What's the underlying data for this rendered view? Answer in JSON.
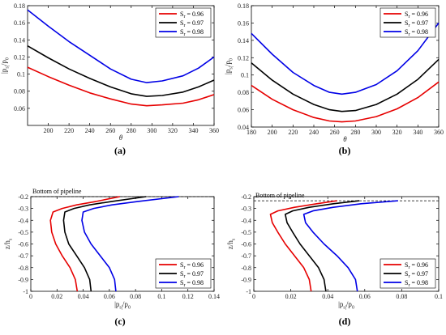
{
  "panel_labels": [
    "(a)",
    "(b)",
    "(c)",
    "(d)"
  ],
  "chart_data": [
    {
      "id": "a",
      "type": "line",
      "xlabel": "θ",
      "ylabel": "|p_s|/p_0",
      "xlim": [
        180,
        360
      ],
      "ylim": [
        0.04,
        0.18
      ],
      "xticks": [
        "200",
        "220",
        "240",
        "260",
        "280",
        "300",
        "320",
        "340",
        "360"
      ],
      "yticks": [
        "0.06",
        "0.08",
        "0.1",
        "0.12",
        "0.14",
        "0.16",
        "0.18"
      ],
      "legend_position": "top-right",
      "series": [
        {
          "name": "S_r = 0.96",
          "color": "#e60000",
          "x": [
            180,
            200,
            220,
            240,
            260,
            280,
            295,
            310,
            330,
            345,
            360
          ],
          "y": [
            0.108,
            0.097,
            0.087,
            0.078,
            0.071,
            0.065,
            0.063,
            0.064,
            0.066,
            0.07,
            0.076
          ]
        },
        {
          "name": "S_r = 0.97",
          "color": "#000000",
          "x": [
            180,
            200,
            220,
            240,
            260,
            280,
            295,
            310,
            330,
            345,
            360
          ],
          "y": [
            0.133,
            0.119,
            0.106,
            0.095,
            0.085,
            0.077,
            0.074,
            0.075,
            0.079,
            0.085,
            0.093
          ]
        },
        {
          "name": "S_r = 0.98",
          "color": "#0000e6",
          "x": [
            180,
            200,
            220,
            240,
            260,
            280,
            295,
            310,
            330,
            345,
            360
          ],
          "y": [
            0.175,
            0.156,
            0.138,
            0.122,
            0.106,
            0.094,
            0.09,
            0.092,
            0.098,
            0.107,
            0.12
          ]
        }
      ]
    },
    {
      "id": "b",
      "type": "line",
      "xlabel": "θ",
      "ylabel": "|p_s|/p_0",
      "xlim": [
        180,
        360
      ],
      "ylim": [
        0.04,
        0.18
      ],
      "xticks": [
        "180",
        "200",
        "220",
        "240",
        "260",
        "280",
        "300",
        "320",
        "340",
        "360"
      ],
      "yticks": [
        "0.04",
        "0.06",
        "0.08",
        "0.1",
        "0.12",
        "0.14",
        "0.16",
        "0.18"
      ],
      "legend_position": "top-right",
      "series": [
        {
          "name": "S_r = 0.96",
          "color": "#e60000",
          "x": [
            180,
            200,
            220,
            240,
            255,
            267,
            280,
            300,
            320,
            340,
            360
          ],
          "y": [
            0.088,
            0.072,
            0.06,
            0.051,
            0.047,
            0.046,
            0.047,
            0.052,
            0.061,
            0.074,
            0.092
          ]
        },
        {
          "name": "S_r = 0.97",
          "color": "#000000",
          "x": [
            180,
            200,
            220,
            240,
            255,
            267,
            280,
            300,
            320,
            340,
            360
          ],
          "y": [
            0.114,
            0.094,
            0.078,
            0.066,
            0.06,
            0.058,
            0.059,
            0.066,
            0.078,
            0.095,
            0.118
          ]
        },
        {
          "name": "S_r = 0.98",
          "color": "#0000e6",
          "x": [
            180,
            200,
            220,
            240,
            255,
            267,
            280,
            300,
            320,
            340,
            360
          ],
          "y": [
            0.148,
            0.124,
            0.103,
            0.088,
            0.08,
            0.078,
            0.08,
            0.089,
            0.105,
            0.128,
            0.16
          ]
        }
      ]
    },
    {
      "id": "c",
      "type": "line",
      "xlabel": "|p_s|/p_0",
      "ylabel": "z/h_s",
      "xlim": [
        0,
        0.14
      ],
      "ylim": [
        -1,
        -0.2
      ],
      "xticks": [
        "0",
        "0.02",
        "0.04",
        "0.06",
        "0.08",
        "0.1",
        "0.12",
        "0.14"
      ],
      "yticks": [
        "-1",
        "-0.9",
        "-0.8",
        "-0.7",
        "-0.6",
        "-0.5",
        "-0.4",
        "-0.3",
        "-0.2"
      ],
      "annotation": "Bottom of pipeline",
      "reference_line_y": -0.2,
      "legend_position": "bottom-right",
      "series": [
        {
          "name": "S_r = 0.96",
          "color": "#e60000",
          "x": [
            0.0355,
            0.034,
            0.03,
            0.024,
            0.019,
            0.016,
            0.015,
            0.017,
            0.024,
            0.035,
            0.05,
            0.068
          ],
          "y": [
            -1.0,
            -0.9,
            -0.8,
            -0.7,
            -0.6,
            -0.5,
            -0.4,
            -0.33,
            -0.3,
            -0.27,
            -0.24,
            -0.2
          ]
        },
        {
          "name": "S_r = 0.97",
          "color": "#000000",
          "x": [
            0.046,
            0.045,
            0.041,
            0.035,
            0.029,
            0.026,
            0.025,
            0.026,
            0.033,
            0.045,
            0.062,
            0.088
          ],
          "y": [
            -1.0,
            -0.9,
            -0.8,
            -0.7,
            -0.6,
            -0.5,
            -0.4,
            -0.33,
            -0.3,
            -0.27,
            -0.24,
            -0.2
          ]
        },
        {
          "name": "S_r = 0.98",
          "color": "#0000e6",
          "x": [
            0.065,
            0.064,
            0.06,
            0.053,
            0.046,
            0.041,
            0.039,
            0.04,
            0.048,
            0.062,
            0.082,
            0.113
          ],
          "y": [
            -1.0,
            -0.9,
            -0.8,
            -0.7,
            -0.6,
            -0.5,
            -0.4,
            -0.33,
            -0.3,
            -0.27,
            -0.24,
            -0.2
          ]
        }
      ]
    },
    {
      "id": "d",
      "type": "line",
      "xlabel": "|p_s|/p_0",
      "ylabel": "z/h_s",
      "xlim": [
        0,
        0.1
      ],
      "ylim": [
        -1,
        -0.2
      ],
      "xticks": [
        "0",
        "0.02",
        "0.04",
        "0.06",
        "0.08",
        "0.1"
      ],
      "yticks": [
        "-1",
        "-0.9",
        "-0.8",
        "-0.7",
        "-0.6",
        "-0.5",
        "-0.4",
        "-0.3",
        "-0.2"
      ],
      "annotation": "Bottom of pipeline",
      "reference_line_y": -0.235,
      "legend_position": "bottom-right",
      "series": [
        {
          "name": "S_r = 0.96",
          "color": "#e60000",
          "x": [
            0.031,
            0.03,
            0.027,
            0.022,
            0.017,
            0.013,
            0.01,
            0.009,
            0.013,
            0.022,
            0.034,
            0.045
          ],
          "y": [
            -1.0,
            -0.9,
            -0.8,
            -0.7,
            -0.6,
            -0.5,
            -0.42,
            -0.35,
            -0.32,
            -0.29,
            -0.26,
            -0.235
          ]
        },
        {
          "name": "S_r = 0.97",
          "color": "#000000",
          "x": [
            0.039,
            0.038,
            0.035,
            0.03,
            0.025,
            0.021,
            0.018,
            0.017,
            0.021,
            0.03,
            0.043,
            0.057
          ],
          "y": [
            -1.0,
            -0.9,
            -0.8,
            -0.7,
            -0.6,
            -0.5,
            -0.42,
            -0.35,
            -0.32,
            -0.29,
            -0.26,
            -0.235
          ]
        },
        {
          "name": "S_r = 0.98",
          "color": "#0000e6",
          "x": [
            0.056,
            0.055,
            0.051,
            0.045,
            0.038,
            0.032,
            0.028,
            0.027,
            0.032,
            0.043,
            0.058,
            0.078
          ],
          "y": [
            -1.0,
            -0.9,
            -0.8,
            -0.7,
            -0.6,
            -0.5,
            -0.42,
            -0.35,
            -0.32,
            -0.29,
            -0.26,
            -0.235
          ]
        }
      ]
    }
  ]
}
